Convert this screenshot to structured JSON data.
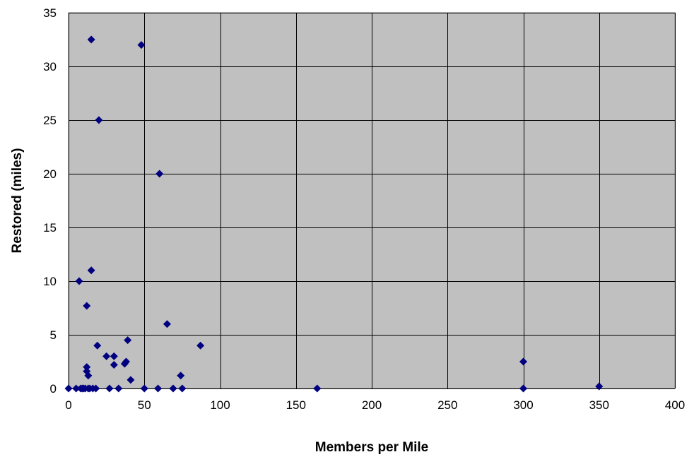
{
  "chart_data": {
    "type": "scatter",
    "title": "",
    "xlabel": "Members per Mile",
    "ylabel": "Restored (miles)",
    "xlim": [
      0,
      400
    ],
    "ylim": [
      0,
      35
    ],
    "x_ticks": [
      0,
      50,
      100,
      150,
      200,
      250,
      300,
      350,
      400
    ],
    "y_ticks": [
      0,
      5,
      10,
      15,
      20,
      25,
      30,
      35
    ],
    "grid": true,
    "legend": "none",
    "plot_background": "#c0c0c0",
    "grid_color": "#000000",
    "marker": "diamond",
    "series": [
      {
        "color": "#000080",
        "points": [
          [
            0,
            0
          ],
          [
            5,
            0
          ],
          [
            7,
            10
          ],
          [
            8,
            0
          ],
          [
            9,
            0
          ],
          [
            10,
            0
          ],
          [
            11,
            0
          ],
          [
            12,
            2
          ],
          [
            12,
            1.6
          ],
          [
            12,
            7.7
          ],
          [
            13,
            1.2
          ],
          [
            13,
            0
          ],
          [
            14,
            0
          ],
          [
            15,
            32.5
          ],
          [
            15,
            11
          ],
          [
            16,
            0
          ],
          [
            18,
            0
          ],
          [
            19,
            4
          ],
          [
            20,
            25
          ],
          [
            25,
            3
          ],
          [
            27,
            0
          ],
          [
            30,
            3
          ],
          [
            30,
            2.2
          ],
          [
            33,
            0
          ],
          [
            37,
            2.3
          ],
          [
            38,
            2.5
          ],
          [
            39,
            4.5
          ],
          [
            41,
            0.8
          ],
          [
            48,
            32
          ],
          [
            50,
            0
          ],
          [
            59,
            0
          ],
          [
            60,
            20
          ],
          [
            65,
            6
          ],
          [
            69,
            0
          ],
          [
            74,
            1.2
          ],
          [
            75,
            0
          ],
          [
            87,
            4
          ],
          [
            164,
            0
          ],
          [
            300,
            2.5
          ],
          [
            300,
            0
          ],
          [
            350,
            0.2
          ]
        ]
      }
    ]
  }
}
